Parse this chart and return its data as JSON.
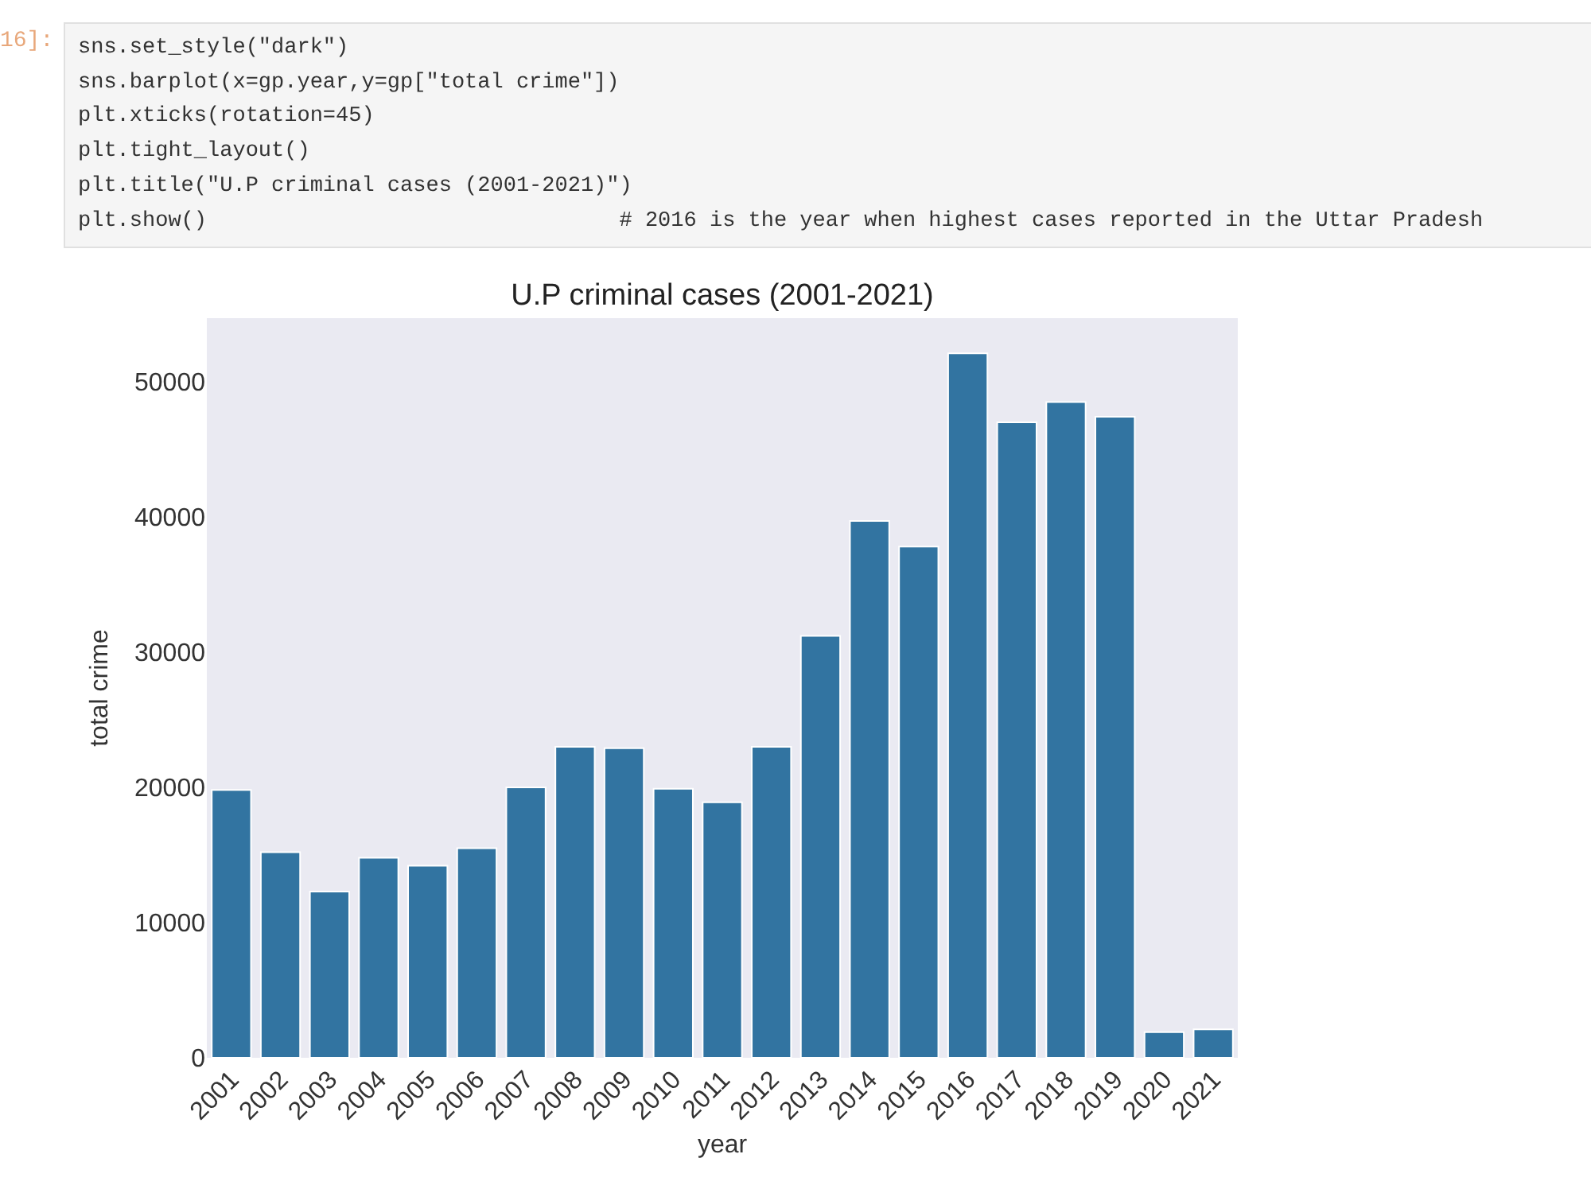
{
  "chart_data": {
    "type": "bar",
    "title": "U.P criminal cases (2001-2021)",
    "xlabel": "year",
    "ylabel": "total crime",
    "categories": [
      "2001",
      "2002",
      "2003",
      "2004",
      "2005",
      "2006",
      "2007",
      "2008",
      "2009",
      "2010",
      "2011",
      "2012",
      "2013",
      "2014",
      "2015",
      "2016",
      "2017",
      "2018",
      "2019",
      "2020",
      "2021"
    ],
    "values": [
      19800,
      15200,
      12300,
      14800,
      14200,
      15500,
      20000,
      23000,
      22900,
      19900,
      18900,
      23000,
      31200,
      39700,
      37800,
      52100,
      47000,
      48500,
      47400,
      1900,
      2100
    ],
    "color": "#3274a1",
    "ylim": [
      0,
      54700
    ],
    "yticks": [
      0,
      10000,
      20000,
      30000,
      40000,
      50000
    ],
    "grid": false,
    "annotations": [
      "16]:",
      "sns.set_style(\"dark\")",
      "sns.barplot(x=gp.year,y=gp[\"total crime\"])",
      "plt.xticks(rotation=45)",
      "plt.tight_layout()",
      "plt.title(\"U.P criminal cases (2001-2021)\")",
      "plt.show()                                # 2016 is the year when highest cases reported in the Uttar Pradesh"
    ]
  }
}
